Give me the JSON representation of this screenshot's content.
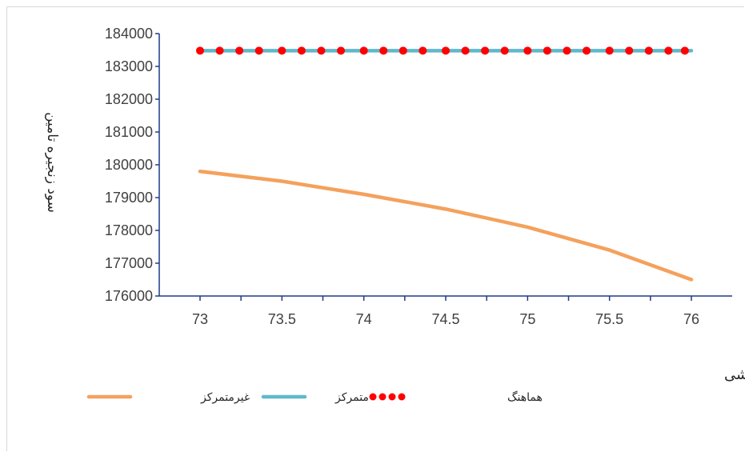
{
  "chart_data": {
    "type": "line",
    "xlabel": "قیمت عمده فروشی",
    "ylabel": "سود زنجیره تامین",
    "xlim": [
      73,
      76
    ],
    "ylim": [
      176000,
      184000
    ],
    "x_ticks": [
      "73",
      "73.5",
      "74",
      "74.5",
      "75",
      "75.5",
      "76"
    ],
    "y_ticks": [
      "176000",
      "177000",
      "178000",
      "179000",
      "180000",
      "181000",
      "182000",
      "183000",
      "184000"
    ],
    "grid": false,
    "legend_position": "bottom",
    "series": [
      {
        "name": "غیرمتمرکز",
        "style": "solid",
        "color": "#f4a15d",
        "x": [
          73,
          73.5,
          74,
          74.5,
          75,
          75.5,
          76
        ],
        "values": [
          179800,
          179500,
          179100,
          178650,
          178100,
          177400,
          176500
        ]
      },
      {
        "name": "متمرکز",
        "style": "solid",
        "color": "#5fb8cc",
        "x": [
          73,
          76
        ],
        "values": [
          183480,
          183480
        ]
      },
      {
        "name": "هماهنگ",
        "style": "dots",
        "color": "#ff0000",
        "x": [
          73,
          73.12,
          73.24,
          73.36,
          73.5,
          73.62,
          73.74,
          73.86,
          74,
          74.12,
          74.24,
          74.36,
          74.5,
          74.62,
          74.74,
          74.86,
          75,
          75.12,
          75.24,
          75.36,
          75.5,
          75.62,
          75.74,
          75.86,
          75.96
        ],
        "values": [
          183480,
          183480,
          183480,
          183480,
          183480,
          183480,
          183480,
          183480,
          183480,
          183480,
          183480,
          183480,
          183480,
          183480,
          183480,
          183480,
          183480,
          183480,
          183480,
          183480,
          183480,
          183480,
          183480,
          183480,
          183480
        ]
      }
    ]
  }
}
